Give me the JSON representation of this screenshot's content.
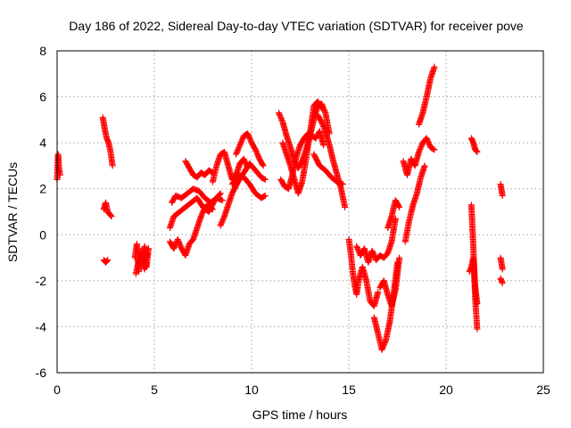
{
  "chart_data": {
    "type": "scatter",
    "title": "Day 186 of 2022, Sidereal Day-to-day VTEC variation (SDTVAR) for receiver pove",
    "xlabel": "GPS time / hours",
    "ylabel": "SDTVAR / TECUs",
    "xlim": [
      0,
      25
    ],
    "ylim": [
      -6,
      8
    ],
    "xticks": [
      0,
      5,
      10,
      15,
      20,
      25
    ],
    "yticks": [
      -6,
      -4,
      -2,
      0,
      2,
      4,
      6,
      8
    ],
    "grid": true,
    "marker": "+",
    "color": "#ff0000",
    "segments": [
      {
        "x": [
          0.0,
          0.05,
          0.1,
          0.15
        ],
        "y": [
          2.4,
          3.5,
          2.9,
          2.6
        ]
      },
      {
        "x": [
          2.35,
          2.45,
          2.55,
          2.65,
          2.75,
          2.85
        ],
        "y": [
          5.1,
          4.6,
          4.2,
          4.0,
          3.6,
          3.0
        ]
      },
      {
        "x": [
          2.4,
          2.5,
          2.6,
          2.7,
          2.8
        ],
        "y": [
          1.1,
          1.4,
          1.0,
          0.9,
          0.8
        ]
      },
      {
        "x": [
          2.4,
          2.5,
          2.6
        ],
        "y": [
          -1.1,
          -1.2,
          -1.1
        ]
      },
      {
        "x": [
          4.0,
          4.1,
          4.2,
          4.3,
          4.4,
          4.5,
          4.6,
          4.7
        ],
        "y": [
          -1.0,
          -0.4,
          -1.6,
          -0.7,
          -1.2,
          -0.5,
          -1.4,
          -0.6
        ]
      },
      {
        "x": [
          4.05,
          4.2,
          4.35,
          4.5,
          4.65
        ],
        "y": [
          -1.7,
          -1.1,
          -0.9,
          -1.5,
          -0.8
        ]
      },
      {
        "x": [
          5.8,
          6.0,
          6.2,
          6.4,
          6.6,
          6.8,
          7.0,
          7.2,
          7.4,
          7.6,
          7.8,
          8.0
        ],
        "y": [
          -0.3,
          -0.6,
          -0.2,
          -0.6,
          -0.9,
          -0.4,
          -0.2,
          0.3,
          0.8,
          1.2,
          1.3,
          1.1
        ]
      },
      {
        "x": [
          5.8,
          6.0,
          6.3,
          6.6,
          6.9,
          7.2,
          7.5,
          7.8,
          8.1,
          8.4
        ],
        "y": [
          0.3,
          0.8,
          1.0,
          1.2,
          1.4,
          1.6,
          1.2,
          1.0,
          1.5,
          1.8
        ]
      },
      {
        "x": [
          5.9,
          6.1,
          6.4,
          6.7,
          7.0,
          7.3,
          7.6,
          7.9,
          8.2,
          8.5
        ],
        "y": [
          1.4,
          1.7,
          1.6,
          1.8,
          2.0,
          1.9,
          1.6,
          1.4,
          1.6,
          1.5
        ]
      },
      {
        "x": [
          6.6,
          6.8,
          7.0,
          7.2,
          7.4,
          7.6,
          7.8,
          8.0
        ],
        "y": [
          3.2,
          2.9,
          2.6,
          2.5,
          2.7,
          2.6,
          2.8,
          2.7
        ]
      },
      {
        "x": [
          8.0,
          8.2,
          8.4,
          8.6,
          8.8,
          9.0,
          9.2,
          9.4,
          9.6,
          9.8
        ],
        "y": [
          2.3,
          3.0,
          3.5,
          3.6,
          3.0,
          2.4,
          2.6,
          3.1,
          3.3,
          2.9
        ]
      },
      {
        "x": [
          8.4,
          8.6,
          8.8,
          9.0,
          9.3,
          9.6,
          9.9,
          10.2,
          10.5,
          10.7
        ],
        "y": [
          0.4,
          0.8,
          1.3,
          1.8,
          2.3,
          2.7,
          3.1,
          2.8,
          2.5,
          2.4
        ]
      },
      {
        "x": [
          9.2,
          9.4,
          9.6,
          9.8,
          10.0,
          10.2,
          10.4,
          10.6
        ],
        "y": [
          3.5,
          3.9,
          4.3,
          4.4,
          4.0,
          3.7,
          3.3,
          3.0
        ]
      },
      {
        "x": [
          9.0,
          9.3,
          9.6,
          9.9,
          10.2,
          10.5,
          10.7
        ],
        "y": [
          2.2,
          2.6,
          2.5,
          2.2,
          1.8,
          1.6,
          1.7
        ]
      },
      {
        "x": [
          11.4,
          11.6,
          11.8,
          12.0,
          12.2,
          12.4,
          12.6,
          12.8,
          13.0,
          13.2,
          13.4,
          13.6,
          13.8,
          14.0
        ],
        "y": [
          5.3,
          4.9,
          4.3,
          3.8,
          3.2,
          2.9,
          3.2,
          3.7,
          4.3,
          5.0,
          5.6,
          5.7,
          5.3,
          4.4
        ]
      },
      {
        "x": [
          11.5,
          11.7,
          11.9,
          12.1,
          12.3,
          12.5,
          12.7,
          12.9,
          13.1,
          13.3,
          13.5,
          13.7
        ],
        "y": [
          2.4,
          2.1,
          2.0,
          2.6,
          3.4,
          3.9,
          4.2,
          4.4,
          4.3,
          4.2,
          4.5,
          3.9
        ]
      },
      {
        "x": [
          11.6,
          11.8,
          12.0,
          12.2,
          12.4,
          12.6,
          12.8,
          13.0,
          13.2,
          13.4,
          13.6
        ],
        "y": [
          4.0,
          3.5,
          3.0,
          2.4,
          1.8,
          2.3,
          3.3,
          4.4,
          5.6,
          5.8,
          5.5
        ]
      },
      {
        "x": [
          13.4,
          13.6,
          13.8,
          14.0,
          14.2,
          14.4,
          14.6,
          14.8
        ],
        "y": [
          5.2,
          4.9,
          4.5,
          3.9,
          3.2,
          2.6,
          2.0,
          1.2
        ]
      },
      {
        "x": [
          13.2,
          13.5,
          13.8,
          14.1,
          14.4,
          14.7
        ],
        "y": [
          3.5,
          3.0,
          2.8,
          2.5,
          2.3,
          2.2
        ]
      },
      {
        "x": [
          15.0,
          15.1,
          15.2,
          15.3,
          15.4,
          15.5,
          15.7,
          15.9,
          16.1,
          16.3,
          16.5
        ],
        "y": [
          -0.2,
          -0.8,
          -1.6,
          -2.2,
          -2.6,
          -2.0,
          -1.4,
          -2.0,
          -2.9,
          -3.1,
          -2.5
        ]
      },
      {
        "x": [
          15.4,
          15.6,
          15.8,
          16.0,
          16.2,
          16.4,
          16.6,
          16.8,
          17.0,
          17.2,
          17.4
        ],
        "y": [
          -0.5,
          -0.9,
          -0.6,
          -1.2,
          -0.7,
          -1.1,
          -0.9,
          -1.0,
          -0.8,
          -0.3,
          0.7
        ]
      },
      {
        "x": [
          16.3,
          16.5,
          16.7,
          16.9,
          17.1,
          17.3,
          17.5
        ],
        "y": [
          -3.6,
          -4.3,
          -5.0,
          -4.6,
          -3.8,
          -2.6,
          -1.2
        ]
      },
      {
        "x": [
          16.6,
          16.8,
          17.0,
          17.2,
          17.4,
          17.6
        ],
        "y": [
          -2.3,
          -2.0,
          -2.6,
          -3.1,
          -2.4,
          -1.0
        ]
      },
      {
        "x": [
          17.0,
          17.2,
          17.4,
          17.6
        ],
        "y": [
          0.3,
          0.8,
          1.5,
          1.2
        ]
      },
      {
        "x": [
          17.8,
          18.0,
          18.2,
          18.4,
          18.6,
          18.8,
          19.0,
          19.2,
          19.4
        ],
        "y": [
          3.2,
          2.6,
          3.3,
          3.0,
          3.6,
          4.0,
          4.2,
          3.8,
          3.7
        ]
      },
      {
        "x": [
          17.9,
          18.1,
          18.3,
          18.5,
          18.7,
          18.9
        ],
        "y": [
          -0.3,
          0.6,
          1.3,
          1.8,
          2.5,
          3.0
        ]
      },
      {
        "x": [
          18.6,
          18.8,
          19.0,
          19.2,
          19.4
        ],
        "y": [
          4.8,
          5.3,
          6.0,
          6.8,
          7.3
        ]
      },
      {
        "x": [
          21.3,
          21.4,
          21.5,
          21.6
        ],
        "y": [
          4.2,
          4.0,
          3.7,
          3.6
        ]
      },
      {
        "x": [
          21.2,
          21.3,
          21.4,
          21.5,
          21.6
        ],
        "y": [
          -1.6,
          -1.4,
          -1.0,
          -2.3,
          -3.0
        ]
      },
      {
        "x": [
          21.3,
          21.4,
          21.5,
          21.6
        ],
        "y": [
          1.3,
          -0.5,
          -2.8,
          -4.1
        ]
      },
      {
        "x": [
          22.8,
          22.9
        ],
        "y": [
          2.2,
          1.7
        ]
      },
      {
        "x": [
          22.8,
          22.9
        ],
        "y": [
          -1.0,
          -1.5
        ]
      },
      {
        "x": [
          22.8,
          22.9
        ],
        "y": [
          -1.9,
          -2.1
        ]
      }
    ]
  }
}
